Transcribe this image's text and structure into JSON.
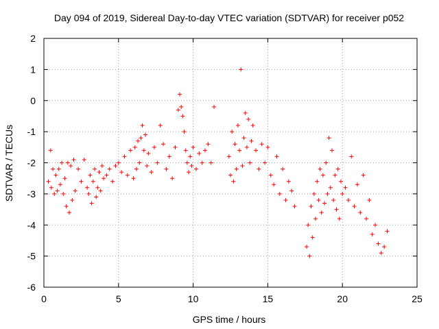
{
  "chart_data": {
    "type": "scatter",
    "title": "Day 094 of 2019, Sidereal Day-to-day VTEC variation (SDTVAR) for receiver p052",
    "xlabel": "GPS time / hours",
    "ylabel": "SDTVAR / TECUs",
    "xlim": [
      0,
      25
    ],
    "ylim": [
      -6,
      2
    ],
    "xticks": [
      0,
      5,
      10,
      15,
      20,
      25
    ],
    "yticks": [
      -6,
      -5,
      -4,
      -3,
      -2,
      -1,
      0,
      1,
      2
    ],
    "xtick_labels": [
      "0",
      "5",
      "10",
      "15",
      "20",
      "25"
    ],
    "ytick_labels": [
      "-6",
      "-5",
      "-4",
      "-3",
      "-2",
      "-1",
      "0",
      "1",
      "2"
    ],
    "grid": true,
    "marker": "+",
    "color": "#ff0000",
    "series": [
      {
        "name": "p052 SDTVAR",
        "x": [
          0.3,
          0.45,
          0.5,
          0.6,
          0.7,
          0.8,
          0.9,
          1.0,
          1.1,
          1.2,
          1.3,
          1.4,
          1.5,
          1.6,
          1.7,
          1.8,
          1.9,
          2.0,
          2.1,
          2.3,
          2.5,
          2.7,
          2.9,
          3.0,
          3.1,
          3.2,
          3.3,
          3.4,
          3.5,
          3.6,
          3.7,
          3.8,
          3.9,
          4.0,
          4.2,
          4.4,
          4.6,
          4.8,
          5.0,
          5.2,
          5.4,
          5.6,
          5.8,
          6.0,
          6.1,
          6.2,
          6.3,
          6.4,
          6.5,
          6.6,
          6.7,
          6.8,
          6.9,
          7.0,
          7.2,
          7.4,
          7.6,
          7.8,
          8.0,
          8.2,
          8.4,
          8.6,
          8.8,
          9.0,
          9.1,
          9.2,
          9.3,
          9.4,
          9.5,
          9.6,
          9.7,
          9.8,
          9.9,
          10.0,
          10.2,
          10.4,
          10.6,
          10.8,
          11.0,
          11.2,
          11.4,
          12.4,
          12.5,
          12.6,
          12.7,
          12.8,
          12.9,
          13.0,
          13.1,
          13.2,
          13.3,
          13.4,
          13.5,
          13.6,
          13.7,
          13.8,
          13.9,
          14.0,
          14.2,
          14.4,
          14.6,
          14.8,
          15.0,
          15.2,
          15.4,
          15.6,
          15.8,
          16.0,
          16.2,
          16.4,
          16.6,
          16.8,
          17.6,
          17.7,
          17.8,
          17.9,
          18.0,
          18.1,
          18.2,
          18.3,
          18.4,
          18.5,
          18.6,
          18.7,
          18.8,
          18.9,
          19.0,
          19.1,
          19.2,
          19.3,
          19.4,
          19.5,
          19.6,
          19.7,
          19.8,
          19.9,
          20.0,
          20.2,
          20.4,
          20.6,
          20.8,
          21.0,
          21.2,
          21.4,
          21.6,
          21.8,
          22.0,
          22.2,
          22.4,
          22.6,
          22.8,
          23.0
        ],
        "y": [
          -2.6,
          -1.6,
          -2.8,
          -2.2,
          -3.0,
          -2.4,
          -2.9,
          -2.2,
          -2.7,
          -2.0,
          -3.0,
          -2.5,
          -3.4,
          -2.0,
          -3.6,
          -2.1,
          -3.2,
          -1.9,
          -2.9,
          -2.2,
          -2.6,
          -1.9,
          -2.8,
          -3.0,
          -2.4,
          -3.3,
          -2.6,
          -2.2,
          -3.1,
          -2.8,
          -2.3,
          -2.9,
          -2.1,
          -2.5,
          -2.4,
          -2.2,
          -2.6,
          -2.1,
          -2.0,
          -2.3,
          -1.8,
          -2.4,
          -1.6,
          -2.5,
          -1.5,
          -2.2,
          -1.3,
          -2.0,
          -1.2,
          -0.8,
          -1.6,
          -1.1,
          -2.1,
          -1.7,
          -2.3,
          -1.5,
          -2.0,
          -0.8,
          -1.4,
          -2.2,
          -1.8,
          -2.5,
          -1.5,
          -0.3,
          0.2,
          -0.2,
          -0.5,
          -1.0,
          -1.6,
          -2.0,
          -2.3,
          -1.8,
          -2.1,
          -1.5,
          -2.2,
          -1.7,
          -2.0,
          -1.6,
          -1.4,
          -2.0,
          -0.2,
          -1.8,
          -2.4,
          -1.0,
          -2.6,
          -1.4,
          -2.2,
          -0.8,
          -1.6,
          1.0,
          -2.1,
          -1.2,
          -0.4,
          -1.5,
          -0.6,
          -2.0,
          -1.3,
          -0.8,
          -1.6,
          -2.2,
          -1.4,
          -2.0,
          -1.5,
          -2.4,
          -2.7,
          -1.8,
          -3.0,
          -2.2,
          -3.2,
          -2.6,
          -2.9,
          -3.4,
          -4.7,
          -4.0,
          -5.0,
          -3.4,
          -4.4,
          -3.0,
          -3.8,
          -2.6,
          -3.2,
          -2.2,
          -3.6,
          -2.4,
          -3.3,
          -2.0,
          -3.0,
          -1.2,
          -2.8,
          -1.6,
          -3.2,
          -2.4,
          -3.5,
          -2.2,
          -3.8,
          -2.6,
          -3.0,
          -2.8,
          -3.2,
          -1.8,
          -3.4,
          -2.7,
          -3.6,
          -2.4,
          -3.8,
          -3.2,
          -4.3,
          -4.0,
          -4.6,
          -4.9,
          -4.7,
          -4.2
        ]
      }
    ]
  }
}
